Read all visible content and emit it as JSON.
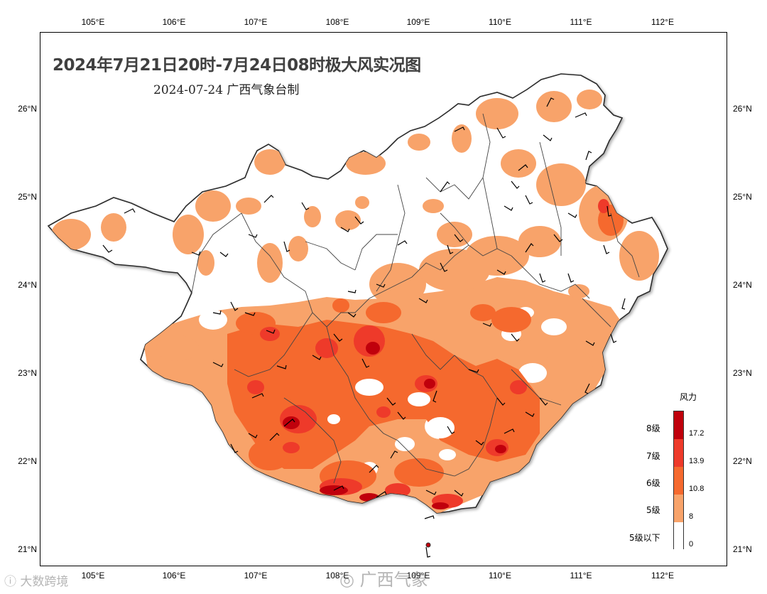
{
  "title": "2024年7月21日20时-7月24日08时极大风实况图",
  "subtitle": "2024-07-24  广西气象台制",
  "axes": {
    "lon_ticks": [
      "105°E",
      "106°E",
      "107°E",
      "108°E",
      "109°E",
      "110°E",
      "111°E",
      "112°E"
    ],
    "lat_ticks": [
      "26°N",
      "25°N",
      "24°N",
      "23°N",
      "22°N",
      "21°N"
    ]
  },
  "legend": {
    "title": "风力",
    "levels": [
      {
        "label": "8级",
        "color": "#c0000c"
      },
      {
        "label": "7级",
        "color": "#ee3a2a"
      },
      {
        "label": "6级",
        "color": "#f5692e"
      },
      {
        "label": "5级",
        "color": "#f8a36a"
      },
      {
        "label": "5级以下",
        "color": "#ffffff"
      }
    ],
    "values": [
      "17.2",
      "13.9",
      "10.8",
      "8",
      "0"
    ]
  },
  "watermarks": {
    "left": "大数跨境",
    "center": "广西气象"
  },
  "colors": {
    "level5": "#f8a36a",
    "level6": "#f5692e",
    "level7": "#ee3a2a",
    "level8": "#c0000c",
    "border": "#333333",
    "title": "#404040"
  }
}
